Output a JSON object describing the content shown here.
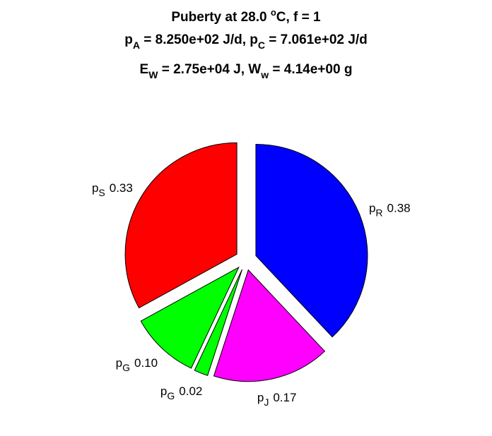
{
  "chart_data": {
    "type": "pie",
    "title": [
      [
        "Puberty at 28.0 ",
        "o",
        "C, f = 1"
      ],
      [
        "p",
        "A",
        " = 8.250e+02 J/d,  p",
        "C",
        " = 7.061e+02 J/d"
      ],
      [
        "E",
        "W",
        " = 2.75e+04 J, W",
        "w",
        " = 4.14e+00 g"
      ]
    ],
    "labels": [
      [
        "p",
        "R"
      ],
      [
        "p",
        "J"
      ],
      [
        "p",
        "G"
      ],
      [
        "p",
        "G"
      ],
      [
        "p",
        "S"
      ]
    ],
    "values": [
      0.38,
      0.17,
      0.02,
      0.1,
      0.33
    ],
    "value_labels": [
      "0.38",
      "0.17",
      "0.02",
      "0.10",
      "0.33"
    ],
    "colors": [
      "#0000ff",
      "#ff00ff",
      "#00ff00",
      "#00ff00",
      "#ff0000"
    ]
  }
}
